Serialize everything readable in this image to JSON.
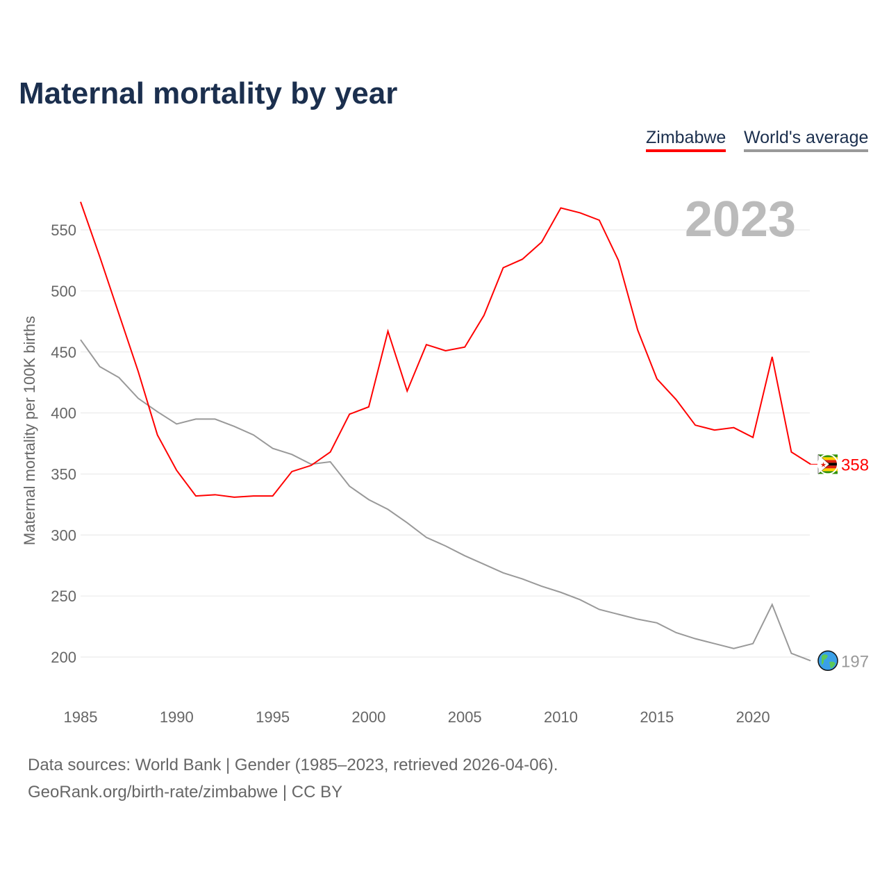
{
  "chart_data": {
    "type": "line",
    "title": "Maternal mortality by year",
    "ylabel": "Maternal mortality per 100K births",
    "xlabel": "",
    "year_label": "2023",
    "xlim": [
      1985,
      2023
    ],
    "ylim": [
      180,
      580
    ],
    "yticks": [
      200,
      250,
      300,
      350,
      400,
      450,
      500,
      550
    ],
    "xticks": [
      1985,
      1990,
      1995,
      2000,
      2005,
      2010,
      2015,
      2020
    ],
    "grid": true,
    "legend_position": "top-right",
    "x": [
      1985,
      1986,
      1987,
      1988,
      1989,
      1990,
      1991,
      1992,
      1993,
      1994,
      1995,
      1996,
      1997,
      1998,
      1999,
      2000,
      2001,
      2002,
      2003,
      2004,
      2005,
      2006,
      2007,
      2008,
      2009,
      2010,
      2011,
      2012,
      2013,
      2014,
      2015,
      2016,
      2017,
      2018,
      2019,
      2020,
      2021,
      2022,
      2023
    ],
    "series": [
      {
        "name": "Zimbabwe",
        "color": "#ff0000",
        "end_label": "358",
        "values": [
          573,
          528,
          481,
          434,
          382,
          353,
          332,
          333,
          331,
          332,
          332,
          352,
          357,
          368,
          399,
          405,
          467,
          418,
          456,
          451,
          454,
          480,
          519,
          526,
          540,
          568,
          564,
          558,
          525,
          468,
          428,
          411,
          390,
          386,
          388,
          380,
          446,
          368,
          358
        ]
      },
      {
        "name": "World's average",
        "color": "#999999",
        "end_label": "197",
        "values": [
          460,
          438,
          429,
          412,
          401,
          391,
          395,
          395,
          389,
          382,
          371,
          366,
          358,
          360,
          340,
          329,
          321,
          310,
          298,
          291,
          283,
          276,
          269,
          264,
          258,
          253,
          247,
          239,
          235,
          231,
          228,
          220,
          215,
          211,
          207,
          211,
          243,
          203,
          197
        ]
      }
    ]
  },
  "footer": {
    "line1": "Data sources: World Bank | Gender (1985–2023, retrieved 2026-04-06).",
    "line2": "GeoRank.org/birth-rate/zimbabwe | CC BY"
  }
}
